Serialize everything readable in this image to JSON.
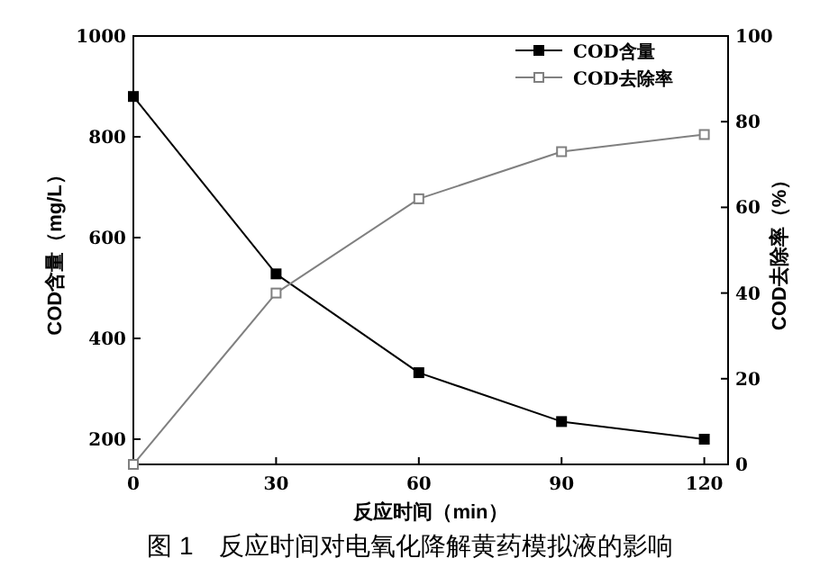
{
  "chart_data": {
    "type": "line",
    "title": "图 1　反应时间对电氧化降解黄药模拟液的影响",
    "xlabel": "反应时间（min）",
    "ylabel": "COD含量（mg/L）",
    "y2label": "COD去除率（%）",
    "x": [
      0,
      30,
      60,
      90,
      120
    ],
    "series": [
      {
        "name": "COD含量",
        "color": "#000000",
        "values": [
          880,
          528,
          332,
          235,
          200
        ]
      },
      {
        "name": "COD去除率",
        "color": "#808080",
        "axis": "y2",
        "values": [
          0,
          40,
          62,
          73,
          77
        ]
      }
    ],
    "xlim": [
      0,
      125
    ],
    "xticks": [
      0,
      30,
      60,
      90,
      120
    ],
    "ylim": [
      150,
      1000
    ],
    "yticks": [
      200,
      400,
      600,
      800,
      1000
    ],
    "y2lim": [
      0,
      100
    ],
    "y2ticks": [
      0,
      20,
      40,
      60,
      80,
      100
    ],
    "marker": "square",
    "line_style": "solid",
    "legend": "top right",
    "grid": false
  }
}
